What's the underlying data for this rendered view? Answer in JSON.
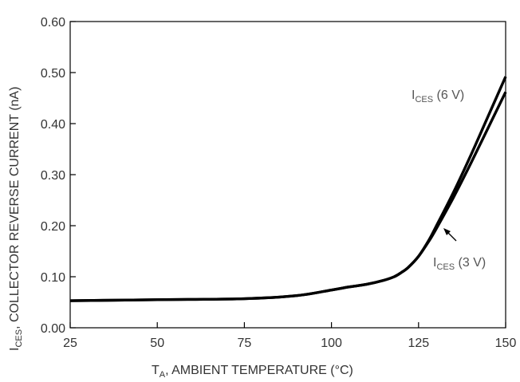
{
  "chart_data": {
    "type": "line",
    "xlim": [
      25,
      150
    ],
    "ylim": [
      0,
      0.6
    ],
    "xticks": [
      "25",
      "50",
      "75",
      "100",
      "125",
      "150"
    ],
    "yticks": [
      "0.00",
      "0.10",
      "0.20",
      "0.30",
      "0.40",
      "0.50",
      "0.60"
    ],
    "xlabel": {
      "pre": "T",
      "sub": "A",
      "post": ", AMBIENT TEMPERATURE (°C)"
    },
    "ylabel": {
      "pre": "I",
      "sub": "CES",
      "post": ", COLLECTOR REVERSE CURRENT (nA)"
    },
    "grid": false,
    "series": [
      {
        "name": "I_CES (6 V)",
        "label": {
          "pre": "I",
          "sub": "CES",
          "post": " (6 V)"
        },
        "x": [
          25,
          50,
          75,
          90,
          100,
          105,
          110,
          115,
          118,
          120,
          122,
          125,
          128,
          130,
          135,
          140,
          145,
          150
        ],
        "y": [
          0.053,
          0.055,
          0.057,
          0.063,
          0.074,
          0.08,
          0.085,
          0.093,
          0.1,
          0.108,
          0.118,
          0.14,
          0.172,
          0.198,
          0.265,
          0.338,
          0.415,
          0.492
        ]
      },
      {
        "name": "I_CES (3 V)",
        "label": {
          "pre": "I",
          "sub": "CES",
          "post": " (3 V)"
        },
        "x": [
          25,
          50,
          75,
          90,
          100,
          105,
          110,
          115,
          118,
          120,
          122,
          125,
          128,
          130,
          135,
          140,
          145,
          150
        ],
        "y": [
          0.053,
          0.055,
          0.057,
          0.063,
          0.074,
          0.08,
          0.085,
          0.093,
          0.1,
          0.108,
          0.118,
          0.14,
          0.17,
          0.193,
          0.255,
          0.322,
          0.392,
          0.462
        ]
      }
    ]
  }
}
